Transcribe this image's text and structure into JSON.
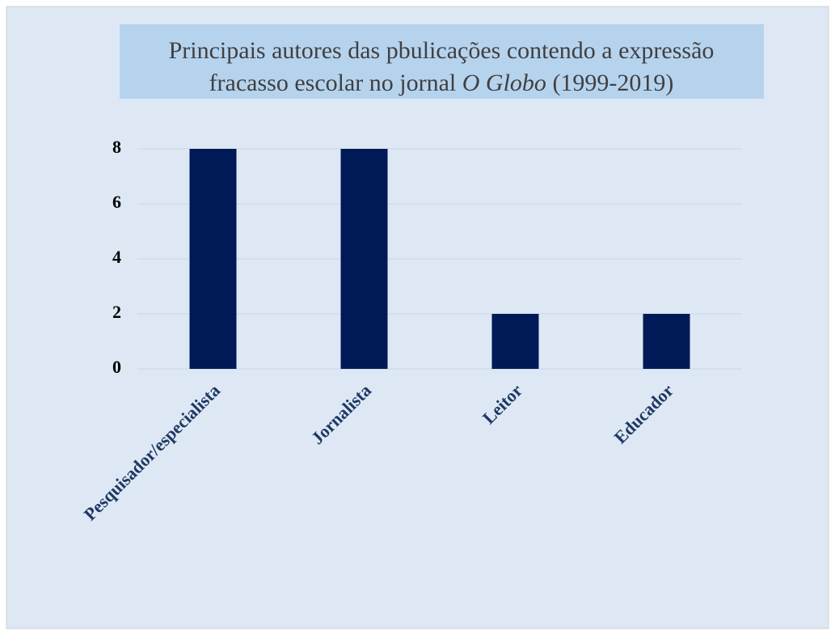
{
  "chart_data": {
    "type": "bar",
    "title": [
      [
        {
          "text": "Principais autores das pbulicações contendo a expressão",
          "italic": false
        }
      ],
      [
        {
          "text": "fracasso escolar no jornal ",
          "italic": false
        },
        {
          "text": "O Globo",
          "italic": true
        },
        {
          "text": " (1999-2019)",
          "italic": false
        }
      ]
    ],
    "categories": [
      "Pesquisador/especialista",
      "Jornalista",
      "Leitor",
      "Educador"
    ],
    "values": [
      8,
      8,
      2,
      2
    ],
    "color": "#001a57",
    "ylim": [
      0,
      8
    ],
    "yticks": [
      0,
      2,
      4,
      6,
      8
    ],
    "grid": true
  }
}
